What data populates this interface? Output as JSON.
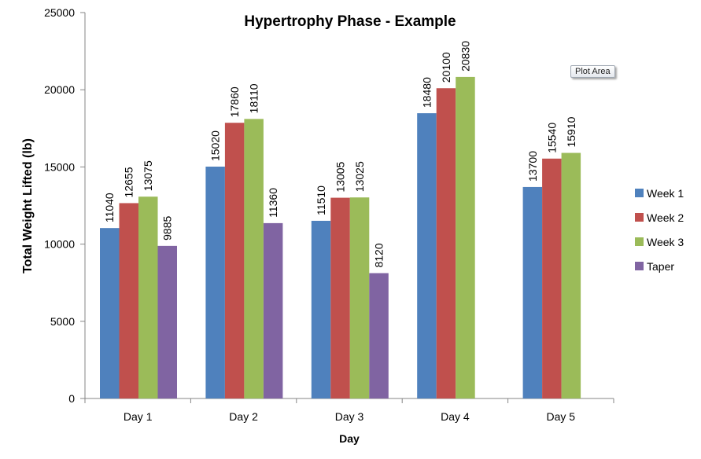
{
  "chart_data": {
    "type": "bar",
    "title": "Hypertrophy Phase - Example",
    "xlabel": "Day",
    "ylabel": "Total Weight Lifted (lb)",
    "categories": [
      "Day 1",
      "Day 2",
      "Day 3",
      "Day 4",
      "Day 5"
    ],
    "ylim": [
      0,
      25000
    ],
    "yticks": [
      0,
      5000,
      10000,
      15000,
      20000,
      25000
    ],
    "grid": false,
    "legend_position": "right",
    "series": [
      {
        "name": "Week 1",
        "color": "#4f81bd",
        "values": [
          11040,
          15020,
          11510,
          18480,
          13700
        ]
      },
      {
        "name": "Week 2",
        "color": "#c0504d",
        "values": [
          12655,
          17860,
          13005,
          20100,
          15540
        ]
      },
      {
        "name": "Week 3",
        "color": "#9bbb59",
        "values": [
          13075,
          18110,
          13025,
          20830,
          15910
        ]
      },
      {
        "name": "Taper",
        "color": "#8064a2",
        "values": [
          9885,
          11360,
          8120,
          null,
          null
        ]
      }
    ]
  },
  "tooltip": {
    "text": "Plot Area"
  }
}
